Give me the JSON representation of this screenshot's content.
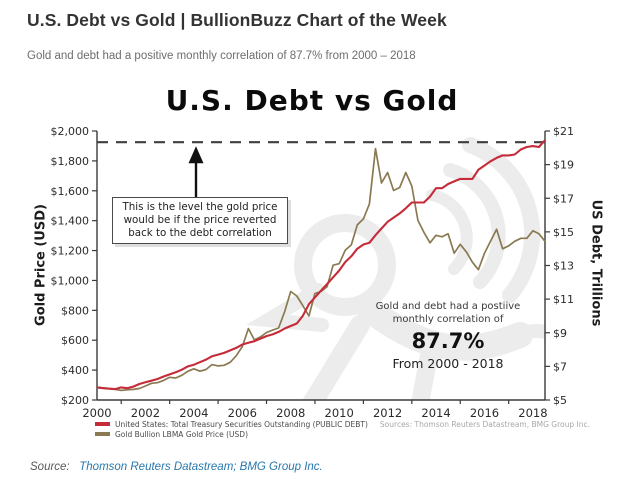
{
  "header": {
    "title": "U.S. Debt vs Gold | BullionBuzz Chart of the Week",
    "subtitle": "Gold and debt had a positive monthly correlation of 87.7% from 2000 – 2018"
  },
  "footer": {
    "source_prefix": "Source:",
    "source_link": "Thomson Reuters Datastream; BMG Group Inc."
  },
  "chart_data": {
    "type": "line",
    "title": "U.S. Debt vs Gold",
    "ylabel_left": "Gold Price (USD)",
    "ylabel_right": "US Debt, Trillions",
    "sources_note": "Sources: Thomson Reuters Datastream, BMG Group Inc.",
    "x_start": 2000,
    "x_step": 0.25,
    "axes": {
      "left": {
        "min": 200,
        "max": 2000,
        "ticks": [
          {
            "v": 2000,
            "label": "$2,000"
          },
          {
            "v": 1800,
            "label": "$1,800"
          },
          {
            "v": 1600,
            "label": "$1,600"
          },
          {
            "v": 1400,
            "label": "$1,400"
          },
          {
            "v": 1200,
            "label": "$1,200"
          },
          {
            "v": 1000,
            "label": "$1,000"
          },
          {
            "v": 800,
            "label": "$800"
          },
          {
            "v": 600,
            "label": "$600"
          },
          {
            "v": 400,
            "label": "$400"
          },
          {
            "v": 200,
            "label": "$200"
          }
        ]
      },
      "right": {
        "min": 5,
        "max": 21,
        "ticks": [
          {
            "v": 21,
            "label": "$21"
          },
          {
            "v": 19,
            "label": "$19"
          },
          {
            "v": 17,
            "label": "$17"
          },
          {
            "v": 15,
            "label": "$15"
          },
          {
            "v": 13,
            "label": "$13"
          },
          {
            "v": 11,
            "label": "$11"
          },
          {
            "v": 9,
            "label": "$9"
          },
          {
            "v": 7,
            "label": "$7"
          },
          {
            "v": 5,
            "label": "$5"
          }
        ]
      },
      "x": {
        "labels": [
          {
            "v": 2000,
            "label": "2000"
          },
          {
            "v": 2002,
            "label": "2002"
          },
          {
            "v": 2004,
            "label": "2004"
          },
          {
            "v": 2006,
            "label": "2006"
          },
          {
            "v": 2008,
            "label": "2008"
          },
          {
            "v": 2010,
            "label": "2010"
          },
          {
            "v": 2012,
            "label": "2012"
          },
          {
            "v": 2014,
            "label": "2014"
          },
          {
            "v": 2016,
            "label": "2016"
          },
          {
            "v": 2018,
            "label": "2018"
          }
        ],
        "minor_ticks": [
          2001,
          2003,
          2005,
          2007,
          2009,
          2011,
          2013,
          2015,
          2017
        ]
      }
    },
    "dashed_line": {
      "gold_level": 1925,
      "color": "#3f3f3f"
    },
    "series": [
      {
        "name": "United States: Total Treasury Securities Outstanding (PUBLIC DEBT)",
        "axis": "right",
        "color": "#c52b39",
        "values": [
          5.75,
          5.7,
          5.67,
          5.65,
          5.75,
          5.7,
          5.8,
          5.95,
          6.05,
          6.15,
          6.25,
          6.4,
          6.52,
          6.65,
          6.8,
          7.0,
          7.1,
          7.25,
          7.4,
          7.6,
          7.7,
          7.8,
          7.95,
          8.1,
          8.3,
          8.4,
          8.5,
          8.65,
          8.8,
          8.9,
          9.05,
          9.25,
          9.4,
          9.55,
          10.0,
          10.7,
          11.1,
          11.5,
          11.9,
          12.3,
          12.7,
          13.2,
          13.55,
          14.0,
          14.25,
          14.35,
          14.8,
          15.2,
          15.6,
          15.85,
          16.1,
          16.4,
          16.75,
          16.75,
          16.75,
          17.1,
          17.6,
          17.6,
          17.85,
          18.0,
          18.15,
          18.15,
          18.15,
          18.7,
          18.95,
          19.2,
          19.4,
          19.55,
          19.55,
          19.6,
          19.9,
          20.05,
          20.1,
          20.05,
          20.45
        ]
      },
      {
        "name": "Gold Bullion LBMA Gold Price (USD)",
        "axis": "left",
        "color": "#8a7a52",
        "values": [
          285,
          281,
          277,
          271,
          264,
          268,
          271,
          277,
          294,
          312,
          316,
          331,
          352,
          347,
          365,
          392,
          409,
          393,
          404,
          437,
          428,
          432,
          452,
          496,
          557,
          678,
          602,
          622,
          652,
          668,
          682,
          792,
          926,
          896,
          832,
          762,
          912,
          926,
          958,
          1102,
          1112,
          1202,
          1238,
          1372,
          1412,
          1512,
          1882,
          1652,
          1722,
          1602,
          1622,
          1722,
          1632,
          1402,
          1322,
          1252,
          1302,
          1292,
          1312,
          1182,
          1242,
          1192,
          1122,
          1072,
          1182,
          1262,
          1342,
          1212,
          1232,
          1262,
          1282,
          1282,
          1332,
          1312,
          1262
        ]
      }
    ],
    "annotations": {
      "arrow_box": {
        "line1": "This is the level the gold price",
        "line2": "would be if the price reverted",
        "line3": "back to the debt correlation"
      },
      "correlation": {
        "intro1": "Gold and debt had a postiive",
        "intro2": "monthly correlation of",
        "value": "87.7%",
        "range": "From 2000 - 2018"
      }
    }
  }
}
